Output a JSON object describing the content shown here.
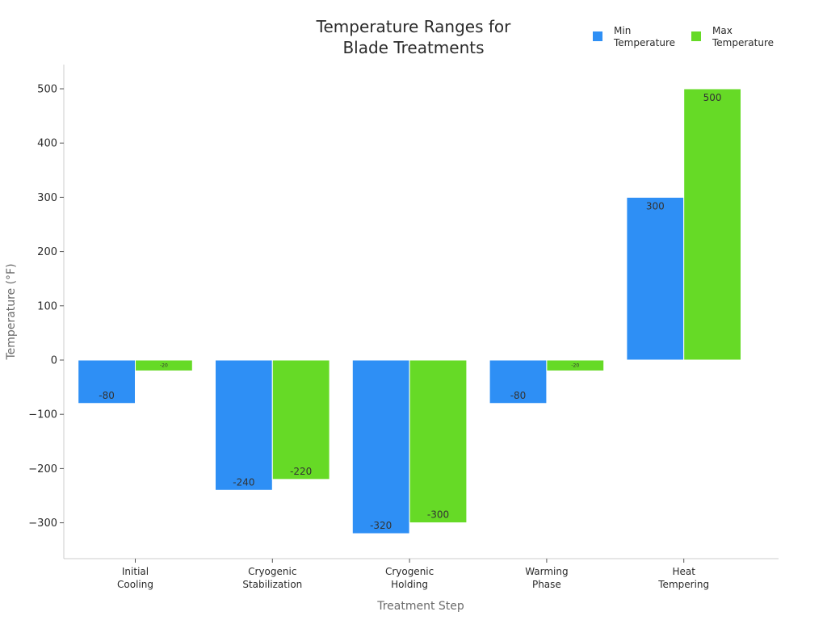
{
  "colors": {
    "min": "#2e8ff5",
    "max": "#66da26",
    "text": "#2a2a2a",
    "axis": "#cccccc"
  },
  "chart_data": {
    "type": "bar",
    "title_lines": [
      "Temperature Ranges for",
      "Blade Treatments"
    ],
    "xlabel": "Treatment Step",
    "ylabel": "Temperature (°F)",
    "ylim": [
      -365,
      545
    ],
    "yticks": [
      -300,
      -200,
      -100,
      0,
      100,
      200,
      300,
      400,
      500
    ],
    "ytick_labels": [
      "−300",
      "−200",
      "−100",
      "0",
      "100",
      "200",
      "300",
      "400",
      "500"
    ],
    "categories": [
      [
        "Initial",
        "Cooling"
      ],
      [
        "Cryogenic",
        "Stabilization"
      ],
      [
        "Cryogenic",
        "Holding"
      ],
      [
        "Warming",
        "Phase"
      ],
      [
        "Heat",
        "Tempering"
      ]
    ],
    "series": [
      {
        "name_lines": [
          "Min",
          "Temperature"
        ],
        "color_key": "min",
        "values": [
          -80,
          -240,
          -320,
          -80,
          300
        ]
      },
      {
        "name_lines": [
          "Max",
          "Temperature"
        ],
        "color_key": "max",
        "values": [
          -20,
          -220,
          -300,
          -20,
          500
        ]
      }
    ],
    "legend_position": "top-right"
  }
}
